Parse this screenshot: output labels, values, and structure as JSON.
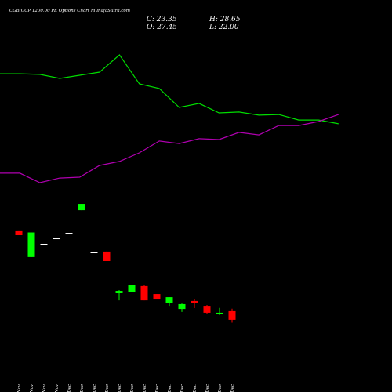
{
  "chart_data": {
    "type": "candlestick",
    "title": "CGBIGCP 1200.00 PE Options Chart MunafaSutra.com",
    "ohlc_labels": {
      "close": "C: 23.35",
      "open": "O: 27.45",
      "high": "H: 28.65",
      "low": "L: 22.00"
    },
    "categories": [
      "25 Nov",
      "26 Nov",
      "27 Nov",
      "28 Nov",
      "01 Dec",
      "09 Dec",
      "11 Dec",
      "12 Dec",
      "16 Dec",
      "17 Dec",
      "18 Dec",
      "19 Dec",
      "20 Dec",
      "23 Dec",
      "24 Dec",
      "26 Dec",
      "27 Dec",
      "30 Dec"
    ],
    "open": [
      65.5,
      53.2,
      59.5,
      62.1,
      64.7,
      75.5,
      55.4,
      55.8,
      36.0,
      36.7,
      39.4,
      35.6,
      31.5,
      28.5,
      32.3,
      30.0,
      26.3,
      27.45
    ],
    "high": [
      65.5,
      64.9,
      59.5,
      62.1,
      64.7,
      78.5,
      55.4,
      55.8,
      37.5,
      40.1,
      39.9,
      35.6,
      34.1,
      31.1,
      33.4,
      30.4,
      29.0,
      28.65
    ],
    "low": [
      63.6,
      53.2,
      59.5,
      62.1,
      64.7,
      75.5,
      55.4,
      51.3,
      32.6,
      36.7,
      32.6,
      33.0,
      30.0,
      27.1,
      28.9,
      26.3,
      25.6,
      22.0
    ],
    "close": [
      63.6,
      64.9,
      59.5,
      62.1,
      64.7,
      78.5,
      55.4,
      51.3,
      37.1,
      40.1,
      32.6,
      33.0,
      34.1,
      30.8,
      31.5,
      26.7,
      26.7,
      23.35
    ],
    "up_color": "#00ff00",
    "down_color": "#ff0000",
    "flat_color": "#ffffff",
    "lines": [
      {
        "color": "#00dd00",
        "values": [
          140.4,
          140.4,
          140.1,
          138.2,
          139.7,
          141.2,
          149.4,
          135.6,
          133.4,
          124.4,
          126.3,
          121.8,
          122.2,
          120.7,
          121.0,
          118.4,
          118.4,
          116.6
        ]
      },
      {
        "color": "#b000b0",
        "values": [
          93.1,
          93.1,
          88.6,
          90.8,
          91.2,
          96.8,
          98.7,
          102.8,
          108.4,
          107.2,
          109.5,
          109.1,
          112.5,
          111.3,
          115.8,
          115.8,
          117.7,
          121.0
        ]
      }
    ],
    "ylim": [
      -11,
      175.5
    ]
  }
}
